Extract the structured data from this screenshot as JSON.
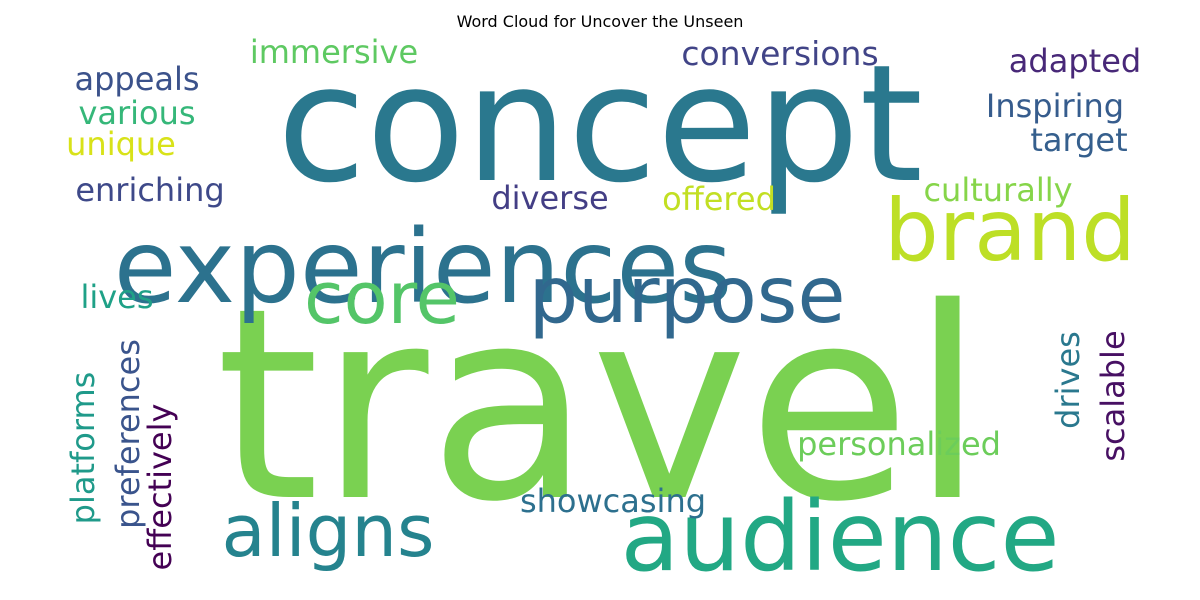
{
  "title": "Word Cloud for Uncover the Unseen",
  "words": [
    {
      "text": "travel",
      "color": "#7ad151"
    },
    {
      "text": "concept",
      "color": "#2a788e"
    },
    {
      "text": "experiences",
      "color": "#2c728e"
    },
    {
      "text": "audience",
      "color": "#22a884"
    },
    {
      "text": "brand",
      "color": "#bddf26"
    },
    {
      "text": "purpose",
      "color": "#31688e"
    },
    {
      "text": "core",
      "color": "#54c568"
    },
    {
      "text": "aligns",
      "color": "#25838e"
    },
    {
      "text": "conversions",
      "color": "#414487"
    },
    {
      "text": "immersive",
      "color": "#5ec962"
    },
    {
      "text": "appeals",
      "color": "#3b528b"
    },
    {
      "text": "adapted",
      "color": "#482878"
    },
    {
      "text": "Inspiring",
      "color": "#365c8d"
    },
    {
      "text": "various",
      "color": "#35b779"
    },
    {
      "text": "target",
      "color": "#355f8d"
    },
    {
      "text": "unique",
      "color": "#d8e219"
    },
    {
      "text": "enriching",
      "color": "#3e4989"
    },
    {
      "text": "diverse",
      "color": "#433e85"
    },
    {
      "text": "offered",
      "color": "#c2df23"
    },
    {
      "text": "culturally",
      "color": "#86d549"
    },
    {
      "text": "lives",
      "color": "#1fa187"
    },
    {
      "text": "personalized",
      "color": "#6ccd5a"
    },
    {
      "text": "showcasing",
      "color": "#2d708e"
    },
    {
      "text": "platforms",
      "color": "#1f9a8a"
    },
    {
      "text": "preferences",
      "color": "#3a548c"
    },
    {
      "text": "effectively",
      "color": "#440154"
    },
    {
      "text": "drives",
      "color": "#2a788e"
    },
    {
      "text": "scalable",
      "color": "#471063"
    }
  ]
}
